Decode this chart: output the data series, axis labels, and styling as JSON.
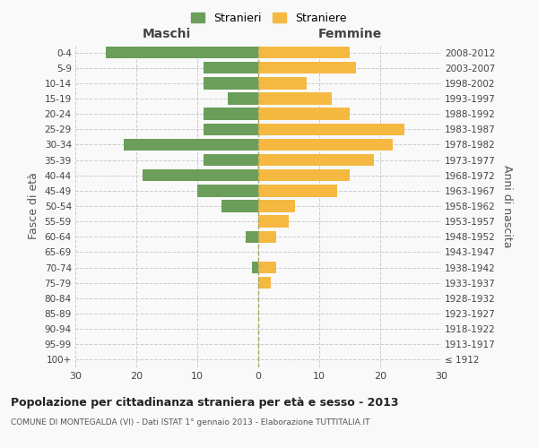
{
  "age_groups": [
    "100+",
    "95-99",
    "90-94",
    "85-89",
    "80-84",
    "75-79",
    "70-74",
    "65-69",
    "60-64",
    "55-59",
    "50-54",
    "45-49",
    "40-44",
    "35-39",
    "30-34",
    "25-29",
    "20-24",
    "15-19",
    "10-14",
    "5-9",
    "0-4"
  ],
  "birth_years": [
    "≤ 1912",
    "1913-1917",
    "1918-1922",
    "1923-1927",
    "1928-1932",
    "1933-1937",
    "1938-1942",
    "1943-1947",
    "1948-1952",
    "1953-1957",
    "1958-1962",
    "1963-1967",
    "1968-1972",
    "1973-1977",
    "1978-1982",
    "1983-1987",
    "1988-1992",
    "1993-1997",
    "1998-2002",
    "2003-2007",
    "2008-2012"
  ],
  "maschi": [
    0,
    0,
    0,
    0,
    0,
    0,
    1,
    0,
    2,
    0,
    6,
    10,
    19,
    9,
    22,
    9,
    9,
    5,
    9,
    9,
    25
  ],
  "femmine": [
    0,
    0,
    0,
    0,
    0,
    2,
    3,
    0,
    3,
    5,
    6,
    13,
    15,
    19,
    22,
    24,
    15,
    12,
    8,
    16,
    15
  ],
  "maschi_color": "#6a9e5a",
  "femmine_color": "#f5b942",
  "title": "Popolazione per cittadinanza straniera per età e sesso - 2013",
  "subtitle": "COMUNE DI MONTEGALDA (VI) - Dati ISTAT 1° gennaio 2013 - Elaborazione TUTTITALIA.IT",
  "ylabel_left": "Fasce di età",
  "ylabel_right": "Anni di nascita",
  "xlabel_maschi": "Maschi",
  "xlabel_femmine": "Femmine",
  "legend_maschi": "Stranieri",
  "legend_femmine": "Straniere",
  "xlim": 30,
  "background_color": "#f9f9f9",
  "grid_color": "#cccccc"
}
